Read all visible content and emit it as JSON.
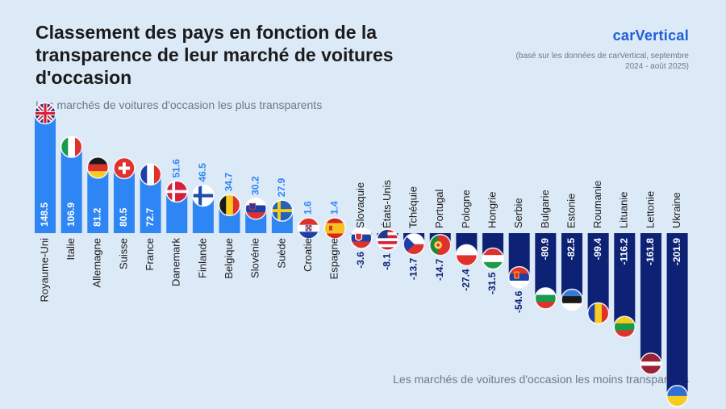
{
  "title": "Classement des pays en fonction de la transparence de leur marché de voitures d'occasion",
  "subtitle_top": "Les marchés de voitures d'occasion les plus transparents",
  "subtitle_bottom": "Les marchés de voitures d'occasion les moins transparents",
  "brand": "carVertical",
  "source_note": "(basé sur les données de carVertical, septembre 2024 - août 2025)",
  "colors": {
    "positive": "#2e86f5",
    "negative": "#0e2275",
    "background": "#dce9f7",
    "brand": "#1f5fd6",
    "label_positive_small": "#2e86f5",
    "label_negative_small": "#0e2275"
  },
  "chart_data": {
    "type": "bar",
    "categories": [
      "Royaume-Uni",
      "Italie",
      "Allemagne",
      "Suisse",
      "France",
      "Danemark",
      "Finlande",
      "Belgique",
      "Slovénie",
      "Suède",
      "Croatie",
      "Espagne",
      "Slovaquie",
      "États-Unis",
      "Tchéquie",
      "Portugal",
      "Pologne",
      "Hongrie",
      "Serbie",
      "Bulgarie",
      "Estonie",
      "Roumanie",
      "Lituanie",
      "Lettonie",
      "Ukraine"
    ],
    "values": [
      148.5,
      106.9,
      81.2,
      80.5,
      72.7,
      51.6,
      46.5,
      34.7,
      30.2,
      27.9,
      1.6,
      1.4,
      -3.6,
      -8.1,
      -13.7,
      -14.7,
      -27.4,
      -31.5,
      -54.6,
      -80.9,
      -82.5,
      -99.4,
      -116.2,
      -161.8,
      -201.9
    ],
    "value_labels": [
      "148.5",
      "106.9",
      "81.2",
      "80.5",
      "72.7",
      "51.6",
      "46.5",
      "34.7",
      "30.2",
      "27.9",
      "1.6",
      "1.4",
      "-3.6",
      "-8.1",
      "-13.7",
      "-14.7",
      "-27.4",
      "-31.5",
      "-54.6",
      "-80.9",
      "-82.5",
      "-99.4",
      "-116.2",
      "-161.8",
      "-201.9"
    ],
    "flags": [
      "uk-flag-icon",
      "italy-flag-icon",
      "germany-flag-icon",
      "switzerland-flag-icon",
      "france-flag-icon",
      "denmark-flag-icon",
      "finland-flag-icon",
      "belgium-flag-icon",
      "slovenia-flag-icon",
      "sweden-flag-icon",
      "croatia-flag-icon",
      "spain-flag-icon",
      "slovakia-flag-icon",
      "usa-flag-icon",
      "czechia-flag-icon",
      "portugal-flag-icon",
      "poland-flag-icon",
      "hungary-flag-icon",
      "serbia-flag-icon",
      "bulgaria-flag-icon",
      "estonia-flag-icon",
      "romania-flag-icon",
      "lithuania-flag-icon",
      "latvia-flag-icon",
      "ukraine-flag-icon"
    ],
    "xlabel": "",
    "ylabel": "",
    "grid": false,
    "legend": "none"
  }
}
